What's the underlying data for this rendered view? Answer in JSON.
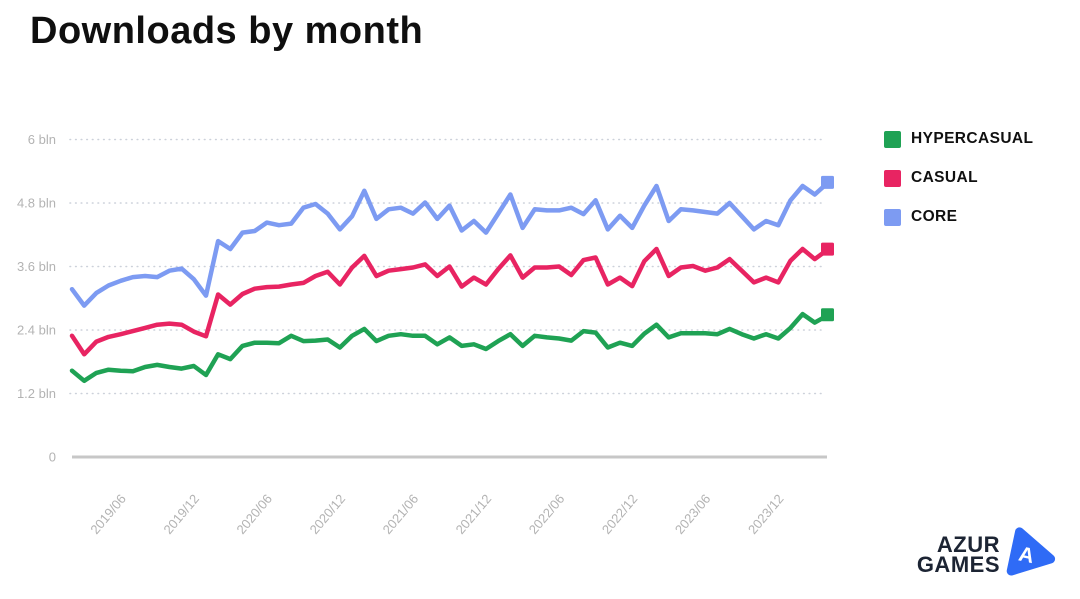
{
  "chart_data": {
    "type": "line",
    "title": "Downloads by month",
    "unit": "bln",
    "ylim": [
      0,
      6
    ],
    "grid": "dotted-horizontal",
    "legend_position": "right",
    "end_marker": "square",
    "y_ticks": [
      "6 bln",
      "4.8 bln",
      "3.6 bln",
      "2.4 bln",
      "1.2 bln",
      "0"
    ],
    "y_tick_values": [
      6,
      4.8,
      3.6,
      2.4,
      1.2,
      0
    ],
    "x_tick_labels": [
      "2019/06",
      "2019/12",
      "2020/06",
      "2020/12",
      "2021/06",
      "2021/12",
      "2022/06",
      "2022/12",
      "2023/06",
      "2023/12"
    ],
    "x_tick_indices": [
      4,
      10,
      16,
      22,
      28,
      34,
      40,
      46,
      52,
      58
    ],
    "series": [
      {
        "name": "HYPERCASUAL",
        "color": "#1fa254",
        "values": [
          1.63,
          1.44,
          1.59,
          1.65,
          1.63,
          1.62,
          1.7,
          1.74,
          1.7,
          1.67,
          1.72,
          1.55,
          1.94,
          1.85,
          2.1,
          2.16,
          2.16,
          2.15,
          2.29,
          2.19,
          2.2,
          2.22,
          2.07,
          2.29,
          2.42,
          2.19,
          2.29,
          2.32,
          2.29,
          2.29,
          2.13,
          2.26,
          2.1,
          2.13,
          2.04,
          2.19,
          2.32,
          2.1,
          2.29,
          2.26,
          2.24,
          2.2,
          2.38,
          2.35,
          2.07,
          2.16,
          2.1,
          2.33,
          2.5,
          2.26,
          2.34,
          2.34,
          2.34,
          2.32,
          2.42,
          2.32,
          2.24,
          2.32,
          2.24,
          2.44,
          2.7,
          2.54,
          2.67
        ]
      },
      {
        "name": "CASUAL",
        "color": "#e82462",
        "values": [
          2.29,
          1.94,
          2.18,
          2.27,
          2.32,
          2.38,
          2.44,
          2.5,
          2.52,
          2.5,
          2.37,
          2.28,
          3.07,
          2.88,
          3.08,
          3.18,
          3.21,
          3.22,
          3.26,
          3.29,
          3.42,
          3.5,
          3.26,
          3.58,
          3.8,
          3.42,
          3.52,
          3.55,
          3.58,
          3.64,
          3.42,
          3.6,
          3.22,
          3.39,
          3.26,
          3.55,
          3.81,
          3.39,
          3.58,
          3.58,
          3.6,
          3.44,
          3.72,
          3.77,
          3.26,
          3.39,
          3.23,
          3.7,
          3.93,
          3.42,
          3.58,
          3.61,
          3.52,
          3.58,
          3.74,
          3.52,
          3.3,
          3.39,
          3.3,
          3.71,
          3.93,
          3.74,
          3.91
        ]
      },
      {
        "name": "CORE",
        "color": "#7d9bf2",
        "values": [
          3.17,
          2.86,
          3.1,
          3.24,
          3.33,
          3.4,
          3.42,
          3.4,
          3.52,
          3.56,
          3.36,
          3.05,
          4.08,
          3.93,
          4.24,
          4.27,
          4.43,
          4.38,
          4.41,
          4.71,
          4.78,
          4.6,
          4.3,
          4.55,
          5.03,
          4.5,
          4.68,
          4.71,
          4.6,
          4.81,
          4.5,
          4.75,
          4.28,
          4.46,
          4.24,
          4.6,
          4.96,
          4.33,
          4.68,
          4.66,
          4.66,
          4.71,
          4.59,
          4.85,
          4.3,
          4.56,
          4.33,
          4.75,
          5.12,
          4.46,
          4.68,
          4.66,
          4.63,
          4.6,
          4.8,
          4.55,
          4.3,
          4.46,
          4.38,
          4.85,
          5.12,
          4.96,
          5.17
        ]
      }
    ]
  },
  "logo": {
    "line1": "AZUR",
    "line2": "GAMES",
    "text_color": "#1c2433",
    "mark_color": "#2f6bf6"
  }
}
